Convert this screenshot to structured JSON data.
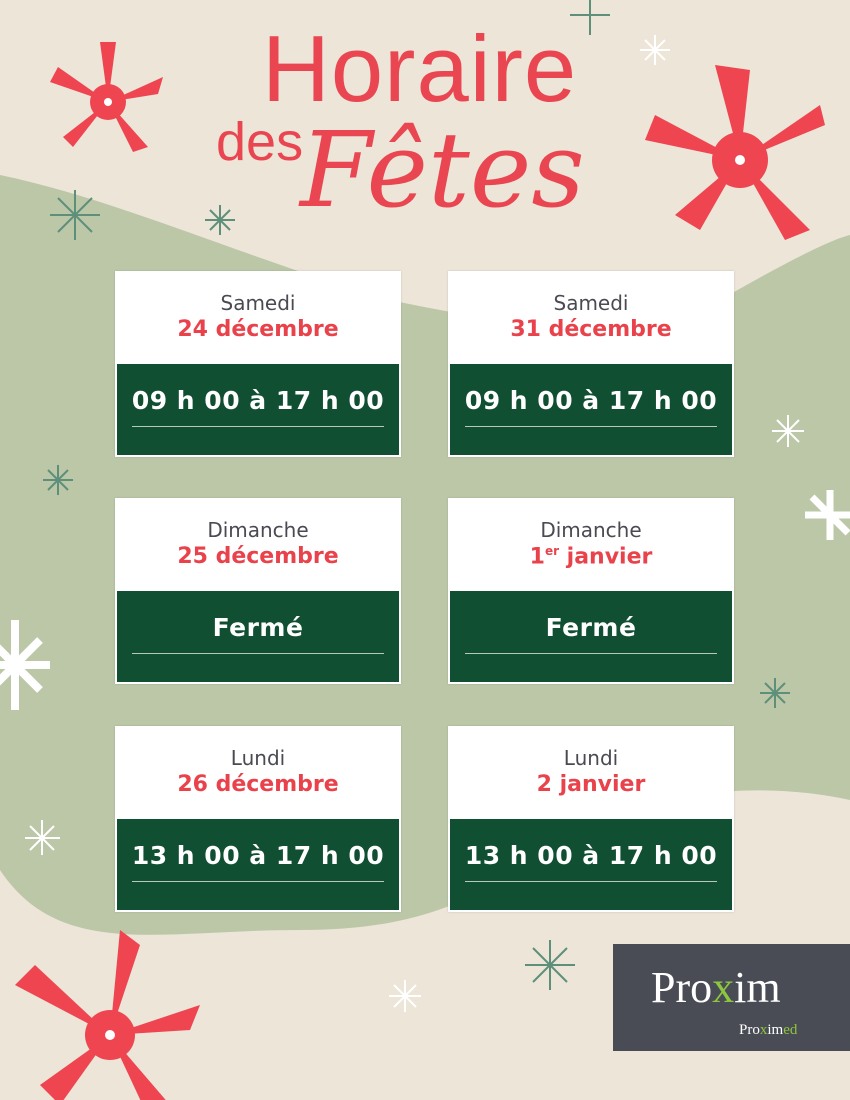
{
  "title": {
    "line1": "Horaire",
    "line2": "des",
    "line3": "Fêtes"
  },
  "colors": {
    "red": "#ea4651",
    "green": "#114f33",
    "beige": "#ece5d8",
    "sage": "#bcc7a8"
  },
  "schedule": [
    {
      "day": "Samedi",
      "date": "24 décembre",
      "hours": "09 h 00 à 17 h 00"
    },
    {
      "day": "Samedi",
      "date": "31 décembre",
      "hours": "09 h 00 à 17 h 00"
    },
    {
      "day": "Dimanche",
      "date": "25 décembre",
      "hours": "Fermé"
    },
    {
      "day": "Dimanche",
      "date_num": "1",
      "date_sup": "er",
      "date_rest": " janvier",
      "hours": "Fermé"
    },
    {
      "day": "Lundi",
      "date": "26 décembre",
      "hours": "13 h 00 à 17 h 00"
    },
    {
      "day": "Lundi",
      "date": "2 janvier",
      "hours": "13 h 00 à 17 h 00"
    }
  ],
  "logo": {
    "brand_a": "Pro",
    "brand_x": "x",
    "brand_b": "im",
    "sub_a": "Pro",
    "sub_x": "x",
    "sub_b": "im",
    "sub_c": "ed"
  }
}
